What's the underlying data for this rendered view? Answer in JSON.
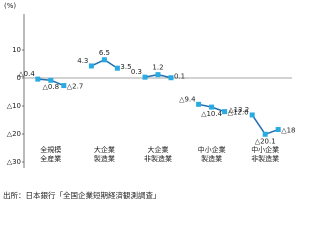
{
  "chart_data": {
    "type": "line",
    "y_unit": "(%)",
    "ylim": [
      -30,
      20
    ],
    "yticks": [
      10,
      0,
      {
        "value": -10,
        "label": "△10"
      },
      {
        "value": -20,
        "label": "△20"
      },
      {
        "value": -30,
        "label": "△30"
      }
    ],
    "line_color": "#1f6fb2",
    "marker_color": "#29abe2",
    "groups": [
      {
        "label": [
          "全規模",
          "全産業"
        ],
        "values": [
          -0.4,
          -0.8,
          -2.7
        ],
        "value_labels": [
          "△0.4",
          "△0.8",
          "△2.7"
        ]
      },
      {
        "label": [
          "大企業",
          "製造業"
        ],
        "values": [
          4.3,
          6.5,
          3.5
        ]
      },
      {
        "label": [
          "大企業",
          "非製造業"
        ],
        "values": [
          0.3,
          1.2,
          0.1
        ]
      },
      {
        "label": [
          "中小企業",
          "製造業"
        ],
        "values": [
          -9.4,
          -10.4,
          -12.0
        ],
        "value_labels": [
          "△9.4",
          "△10.4",
          "△12.0"
        ]
      },
      {
        "label": [
          "中小企業",
          "非製造業"
        ],
        "values": [
          -13.2,
          -20.1,
          -18.4
        ],
        "value_labels": [
          "△13.2",
          "△20.1",
          "△18.4"
        ]
      }
    ],
    "source": "出所：日本銀行「全国企業短期経済観測調査」"
  }
}
